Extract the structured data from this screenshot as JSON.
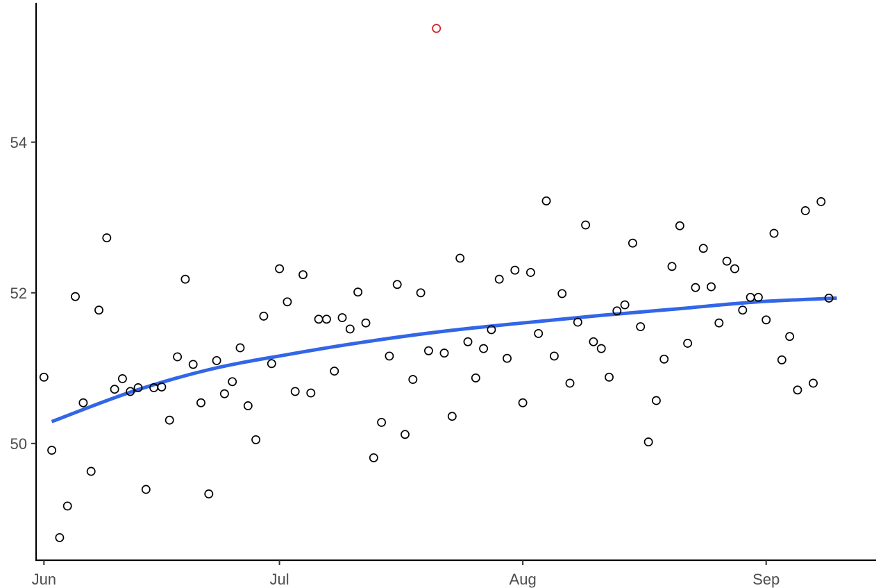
{
  "chart_data": {
    "type": "scatter",
    "title": "",
    "xlabel": "",
    "ylabel": "",
    "x_axis": {
      "kind": "date",
      "range": [
        "2023-05-31",
        "2023-09-15"
      ],
      "ticks": [
        {
          "date": "2023-06-01",
          "label": "Jun"
        },
        {
          "date": "2023-07-01",
          "label": "Jul"
        },
        {
          "date": "2023-08-01",
          "label": "Aug"
        },
        {
          "date": "2023-09-01",
          "label": "Sep"
        }
      ]
    },
    "y_axis": {
      "range": [
        48.45,
        55.85
      ],
      "ticks": [
        {
          "value": 50,
          "label": "50"
        },
        {
          "value": 52,
          "label": "52"
        },
        {
          "value": 54,
          "label": "54"
        }
      ]
    },
    "grid": false,
    "legend": "none",
    "colors": {
      "points": "#000000",
      "outlier": "#d7191c",
      "trend": "#3366e6"
    },
    "series": [
      {
        "mark": "point",
        "color": "#000000",
        "x": [
          "2023-06-01",
          "2023-06-02",
          "2023-06-03",
          "2023-06-04",
          "2023-06-05",
          "2023-06-06",
          "2023-06-07",
          "2023-06-08",
          "2023-06-09",
          "2023-06-10",
          "2023-06-11",
          "2023-06-12",
          "2023-06-13",
          "2023-06-14",
          "2023-06-15",
          "2023-06-16",
          "2023-06-17",
          "2023-06-18",
          "2023-06-19",
          "2023-06-20",
          "2023-06-21",
          "2023-06-22",
          "2023-06-23",
          "2023-06-24",
          "2023-06-25",
          "2023-06-26",
          "2023-06-27",
          "2023-06-28",
          "2023-06-29",
          "2023-06-30",
          "2023-07-01",
          "2023-07-02",
          "2023-07-03",
          "2023-07-04",
          "2023-07-05",
          "2023-07-06",
          "2023-07-07",
          "2023-07-08",
          "2023-07-09",
          "2023-07-10",
          "2023-07-11",
          "2023-07-12",
          "2023-07-13",
          "2023-07-14",
          "2023-07-15",
          "2023-07-16",
          "2023-07-17",
          "2023-07-18",
          "2023-07-19",
          "2023-07-20",
          "2023-07-22",
          "2023-07-23",
          "2023-07-24",
          "2023-07-25",
          "2023-07-26",
          "2023-07-27",
          "2023-07-28",
          "2023-07-29",
          "2023-07-30",
          "2023-07-31",
          "2023-08-01",
          "2023-08-02",
          "2023-08-03",
          "2023-08-04",
          "2023-08-05",
          "2023-08-06",
          "2023-08-07",
          "2023-08-08",
          "2023-08-09",
          "2023-08-10",
          "2023-08-11",
          "2023-08-12",
          "2023-08-13",
          "2023-08-14",
          "2023-08-15",
          "2023-08-16",
          "2023-08-17",
          "2023-08-18",
          "2023-08-19",
          "2023-08-20",
          "2023-08-21",
          "2023-08-22",
          "2023-08-23",
          "2023-08-24",
          "2023-08-25",
          "2023-08-26",
          "2023-08-27",
          "2023-08-28",
          "2023-08-29",
          "2023-08-30",
          "2023-08-31",
          "2023-09-01",
          "2023-09-02",
          "2023-09-03",
          "2023-09-04",
          "2023-09-05",
          "2023-09-06",
          "2023-09-07",
          "2023-09-08",
          "2023-09-09"
        ],
        "y": [
          50.88,
          49.91,
          48.75,
          49.17,
          51.95,
          50.54,
          49.63,
          51.77,
          52.73,
          50.72,
          50.86,
          50.69,
          50.74,
          49.39,
          50.74,
          50.75,
          50.31,
          51.15,
          52.18,
          51.05,
          50.54,
          49.33,
          51.1,
          50.66,
          50.82,
          51.27,
          50.5,
          50.05,
          51.69,
          51.06,
          52.32,
          51.88,
          50.69,
          52.24,
          50.67,
          51.65,
          51.65,
          50.96,
          51.67,
          51.52,
          52.01,
          51.6,
          49.81,
          50.28,
          51.16,
          52.11,
          50.12,
          50.85,
          52.0,
          51.23,
          51.2,
          50.36,
          52.46,
          51.35,
          50.87,
          51.26,
          51.51,
          52.18,
          51.13,
          52.3,
          50.54,
          52.27,
          51.46,
          53.22,
          51.16,
          51.99,
          50.8,
          51.61,
          52.9,
          51.35,
          51.26,
          50.88,
          51.76,
          51.84,
          52.66,
          51.55,
          50.02,
          50.57,
          51.12,
          52.35,
          52.89,
          51.33,
          52.07,
          52.59,
          52.08,
          51.6,
          52.42,
          52.32,
          51.77,
          51.94,
          51.94,
          51.64,
          52.79,
          51.11,
          51.42,
          50.71,
          53.09,
          50.8,
          53.21,
          51.93
        ]
      },
      {
        "mark": "point",
        "color": "#d7191c",
        "x": [
          "2023-07-21"
        ],
        "y": [
          55.51
        ]
      },
      {
        "mark": "line",
        "color": "#3366e6",
        "x": [
          "2023-06-02",
          "2023-06-12",
          "2023-06-22",
          "2023-07-02",
          "2023-07-12",
          "2023-07-22",
          "2023-08-01",
          "2023-08-11",
          "2023-08-21",
          "2023-08-31",
          "2023-09-10"
        ],
        "y": [
          50.29,
          50.68,
          50.98,
          51.18,
          51.35,
          51.49,
          51.6,
          51.7,
          51.79,
          51.88,
          51.93
        ]
      }
    ]
  }
}
